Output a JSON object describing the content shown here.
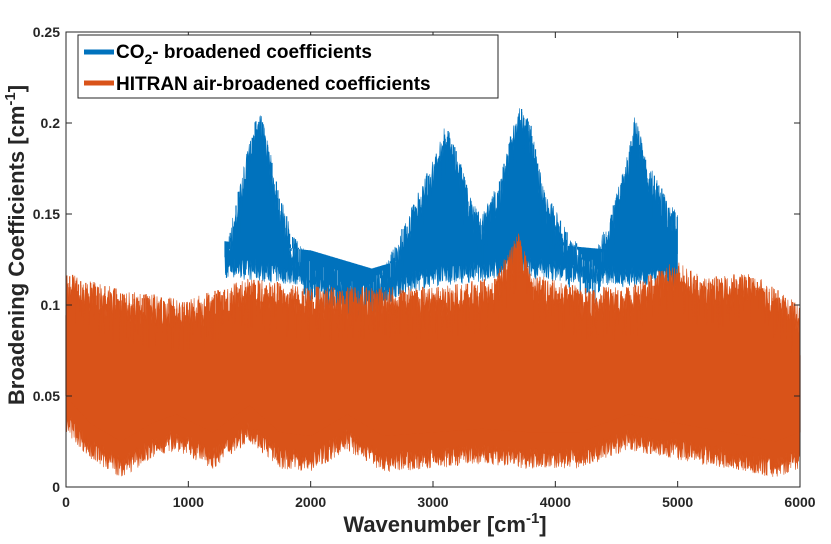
{
  "chart_data": {
    "type": "line",
    "title": "",
    "xlabel": "Wavenumber [cm",
    "xlabel_sup": "-1",
    "xlabel_close": "]",
    "ylabel": "Broadening Coefficients [cm",
    "ylabel_sup": "-1",
    "ylabel_close": "]",
    "xlim": [
      0,
      6000
    ],
    "ylim": [
      0,
      0.25
    ],
    "xticks": [
      0,
      1000,
      2000,
      3000,
      4000,
      5000,
      6000
    ],
    "xtick_labels": [
      "0",
      "1000",
      "2000",
      "3000",
      "4000",
      "5000",
      "6000"
    ],
    "yticks": [
      0,
      0.05,
      0.1,
      0.15,
      0.2,
      0.25
    ],
    "ytick_labels": [
      "0",
      "0.05",
      "0.1",
      "0.15",
      "0.2",
      "0.25"
    ],
    "grid": false,
    "legend_position": "top-left",
    "series": [
      {
        "name": "CO2- broadened coefficients",
        "legend_main": "CO",
        "legend_sub": "2",
        "legend_rest": "- broadened coefficients",
        "color": "#0072BD",
        "x_range": [
          1300,
          5000
        ],
        "upper_envelope": [
          [
            1300,
            0.13
          ],
          [
            1400,
            0.16
          ],
          [
            1500,
            0.19
          ],
          [
            1580,
            0.21
          ],
          [
            1650,
            0.19
          ],
          [
            1750,
            0.16
          ],
          [
            1850,
            0.14
          ],
          [
            2000,
            0.125
          ],
          [
            2200,
            0.12
          ],
          [
            2400,
            0.11
          ],
          [
            2600,
            0.12
          ],
          [
            2800,
            0.15
          ],
          [
            3000,
            0.18
          ],
          [
            3100,
            0.2
          ],
          [
            3200,
            0.185
          ],
          [
            3300,
            0.16
          ],
          [
            3400,
            0.15
          ],
          [
            3550,
            0.17
          ],
          [
            3700,
            0.212
          ],
          [
            3800,
            0.2
          ],
          [
            3900,
            0.165
          ],
          [
            4100,
            0.14
          ],
          [
            4300,
            0.125
          ],
          [
            4450,
            0.15
          ],
          [
            4600,
            0.185
          ],
          [
            4650,
            0.205
          ],
          [
            4750,
            0.18
          ],
          [
            4900,
            0.16
          ],
          [
            5000,
            0.15
          ]
        ],
        "lower_envelope": [
          [
            1300,
            0.115
          ],
          [
            2000,
            0.11
          ],
          [
            2500,
            0.1
          ],
          [
            3000,
            0.11
          ],
          [
            3700,
            0.115
          ],
          [
            4500,
            0.11
          ],
          [
            5000,
            0.108
          ]
        ]
      },
      {
        "name": "HITRAN air-broadened coefficients",
        "color": "#D95319",
        "x_range": [
          0,
          6000
        ],
        "upper_envelope": [
          [
            0,
            0.118
          ],
          [
            200,
            0.113
          ],
          [
            500,
            0.108
          ],
          [
            800,
            0.105
          ],
          [
            1000,
            0.103
          ],
          [
            1200,
            0.108
          ],
          [
            1500,
            0.115
          ],
          [
            2000,
            0.11
          ],
          [
            2500,
            0.11
          ],
          [
            3000,
            0.11
          ],
          [
            3500,
            0.115
          ],
          [
            3700,
            0.14
          ],
          [
            3800,
            0.118
          ],
          [
            4200,
            0.11
          ],
          [
            4600,
            0.11
          ],
          [
            5000,
            0.125
          ],
          [
            5200,
            0.115
          ],
          [
            5600,
            0.118
          ],
          [
            6000,
            0.1
          ]
        ],
        "lower_envelope": [
          [
            0,
            0.03
          ],
          [
            200,
            0.015
          ],
          [
            450,
            0.005
          ],
          [
            700,
            0.015
          ],
          [
            900,
            0.02
          ],
          [
            1200,
            0.01
          ],
          [
            1500,
            0.025
          ],
          [
            1750,
            0.01
          ],
          [
            2000,
            0.008
          ],
          [
            2300,
            0.02
          ],
          [
            2600,
            0.008
          ],
          [
            3000,
            0.01
          ],
          [
            3400,
            0.012
          ],
          [
            3800,
            0.01
          ],
          [
            4200,
            0.01
          ],
          [
            4600,
            0.02
          ],
          [
            5000,
            0.015
          ],
          [
            5400,
            0.01
          ],
          [
            5800,
            0.005
          ],
          [
            6000,
            0.01
          ]
        ]
      }
    ]
  }
}
